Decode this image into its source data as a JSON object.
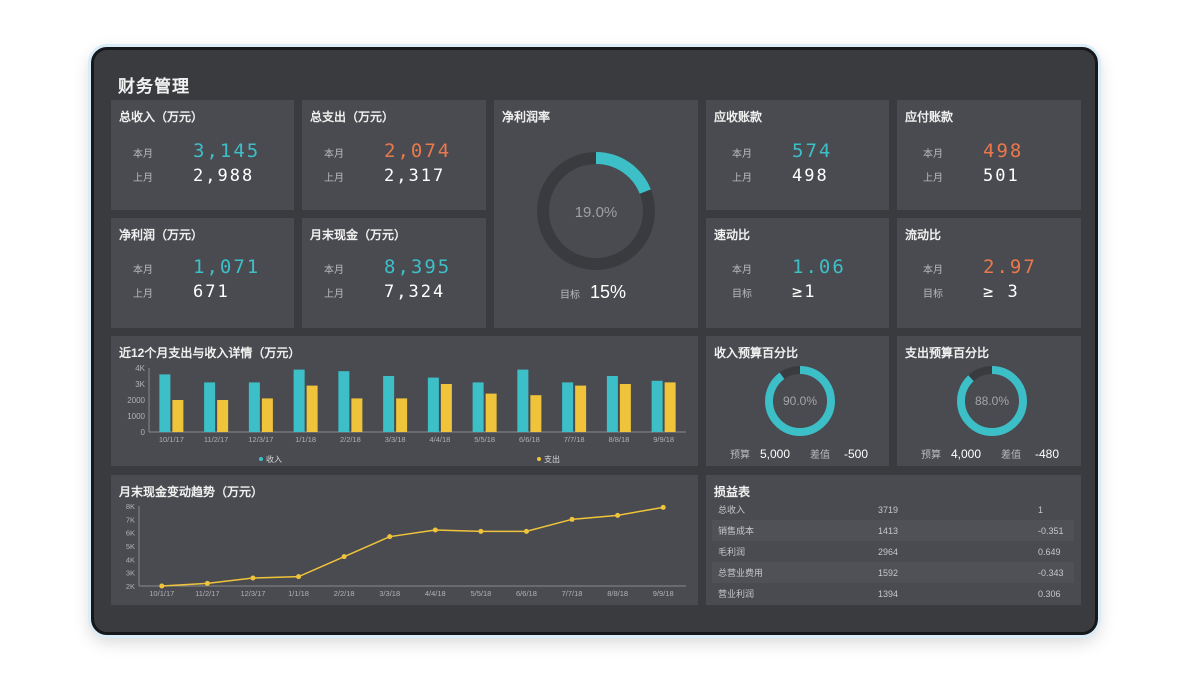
{
  "title": "财务管理",
  "kpis": {
    "revenue": {
      "title": "总收入（万元）",
      "this_label": "本月",
      "this_value": "3,145",
      "last_label": "上月",
      "last_value": "2,988"
    },
    "expense": {
      "title": "总支出（万元）",
      "this_label": "本月",
      "this_value": "2,074",
      "last_label": "上月",
      "last_value": "2,317"
    },
    "net_profit": {
      "title": "净利润（万元）",
      "this_label": "本月",
      "this_value": "1,071",
      "last_label": "上月",
      "last_value": "671"
    },
    "cash": {
      "title": "月末现金（万元）",
      "this_label": "本月",
      "this_value": "8,395",
      "last_label": "上月",
      "last_value": "7,324"
    },
    "receivable": {
      "title": "应收账款",
      "this_label": "本月",
      "this_value": "574",
      "last_label": "上月",
      "last_value": "498"
    },
    "payable": {
      "title": "应付账款",
      "this_label": "本月",
      "this_value": "498",
      "last_label": "上月",
      "last_value": "501"
    },
    "quick_ratio": {
      "title": "速动比",
      "this_label": "本月",
      "this_value": "1.06",
      "last_label": "目标",
      "last_value": "≥1"
    },
    "current_ratio": {
      "title": "流动比",
      "this_label": "本月",
      "this_value": "2.97",
      "last_label": "目标",
      "last_value": "≥ 3"
    }
  },
  "margin": {
    "title": "净利润率",
    "value_text": "19.0%",
    "fraction": 0.19,
    "target_label": "目标",
    "target_value": "15%"
  },
  "budget_income": {
    "title": "收入预算百分比",
    "value_text": "90.0%",
    "fraction": 0.9,
    "budget_label": "预算",
    "budget_value": "5,000",
    "diff_label": "差值",
    "diff_value": "-500"
  },
  "budget_expense": {
    "title": "支出预算百分比",
    "value_text": "88.0%",
    "fraction": 0.88,
    "budget_label": "预算",
    "budget_value": "4,000",
    "diff_label": "差值",
    "diff_value": "-480"
  },
  "bar_chart_title": "近12个月支出与收入详情（万元）",
  "line_chart_title": "月末现金变动趋势（万元）",
  "chart_data": [
    {
      "type": "bar",
      "title": "近12个月支出与收入详情（万元）",
      "categories": [
        "10/1/17",
        "11/2/17",
        "12/3/17",
        "1/1/18",
        "2/2/18",
        "3/3/18",
        "4/4/18",
        "5/5/18",
        "6/6/18",
        "7/7/18",
        "8/8/18",
        "9/9/18"
      ],
      "series": [
        {
          "name": "收入",
          "color": "#3dbfc8",
          "values": [
            3600,
            3100,
            3100,
            3900,
            3800,
            3500,
            3400,
            3100,
            3900,
            3100,
            3500,
            3200
          ]
        },
        {
          "name": "支出",
          "color": "#f0c43a",
          "values": [
            2000,
            2000,
            2100,
            2900,
            2100,
            2100,
            3000,
            2400,
            2300,
            2900,
            3000,
            3100
          ]
        }
      ],
      "yticks": [
        "0",
        "1000",
        "2000",
        "3K",
        "4K"
      ],
      "ylim": [
        0,
        4000
      ],
      "legend": "bottom"
    },
    {
      "type": "line",
      "title": "月末现金变动趋势（万元）",
      "categories": [
        "10/1/17",
        "11/2/17",
        "12/3/17",
        "1/1/18",
        "2/2/18",
        "3/3/18",
        "4/4/18",
        "5/5/18",
        "6/6/18",
        "7/7/18",
        "8/8/18",
        "9/9/18"
      ],
      "series": [
        {
          "name": "月末现金",
          "color": "#f0c43a",
          "values": [
            2000,
            2200,
            2600,
            2700,
            4200,
            5700,
            6200,
            6100,
            6100,
            7000,
            7300,
            7900
          ]
        }
      ],
      "yticks": [
        "2K",
        "3K",
        "4K",
        "5K",
        "6K",
        "7K",
        "8K"
      ],
      "ylim": [
        2000,
        8000
      ]
    }
  ],
  "pl_table": {
    "title": "损益表",
    "rows": [
      [
        "总收入",
        "3719",
        "1"
      ],
      [
        "销售成本",
        "1413",
        "-0.351"
      ],
      [
        "毛利润",
        "2964",
        "0.649"
      ],
      [
        "总营业费用",
        "1592",
        "-0.343"
      ],
      [
        "营业利润",
        "1394",
        "0.306"
      ]
    ]
  },
  "colors": {
    "cyan": "#3dbfc8",
    "orange": "#e9784c",
    "yellow": "#f0c43a",
    "panel": "#4a4b50",
    "bg": "#3a3b3f"
  }
}
